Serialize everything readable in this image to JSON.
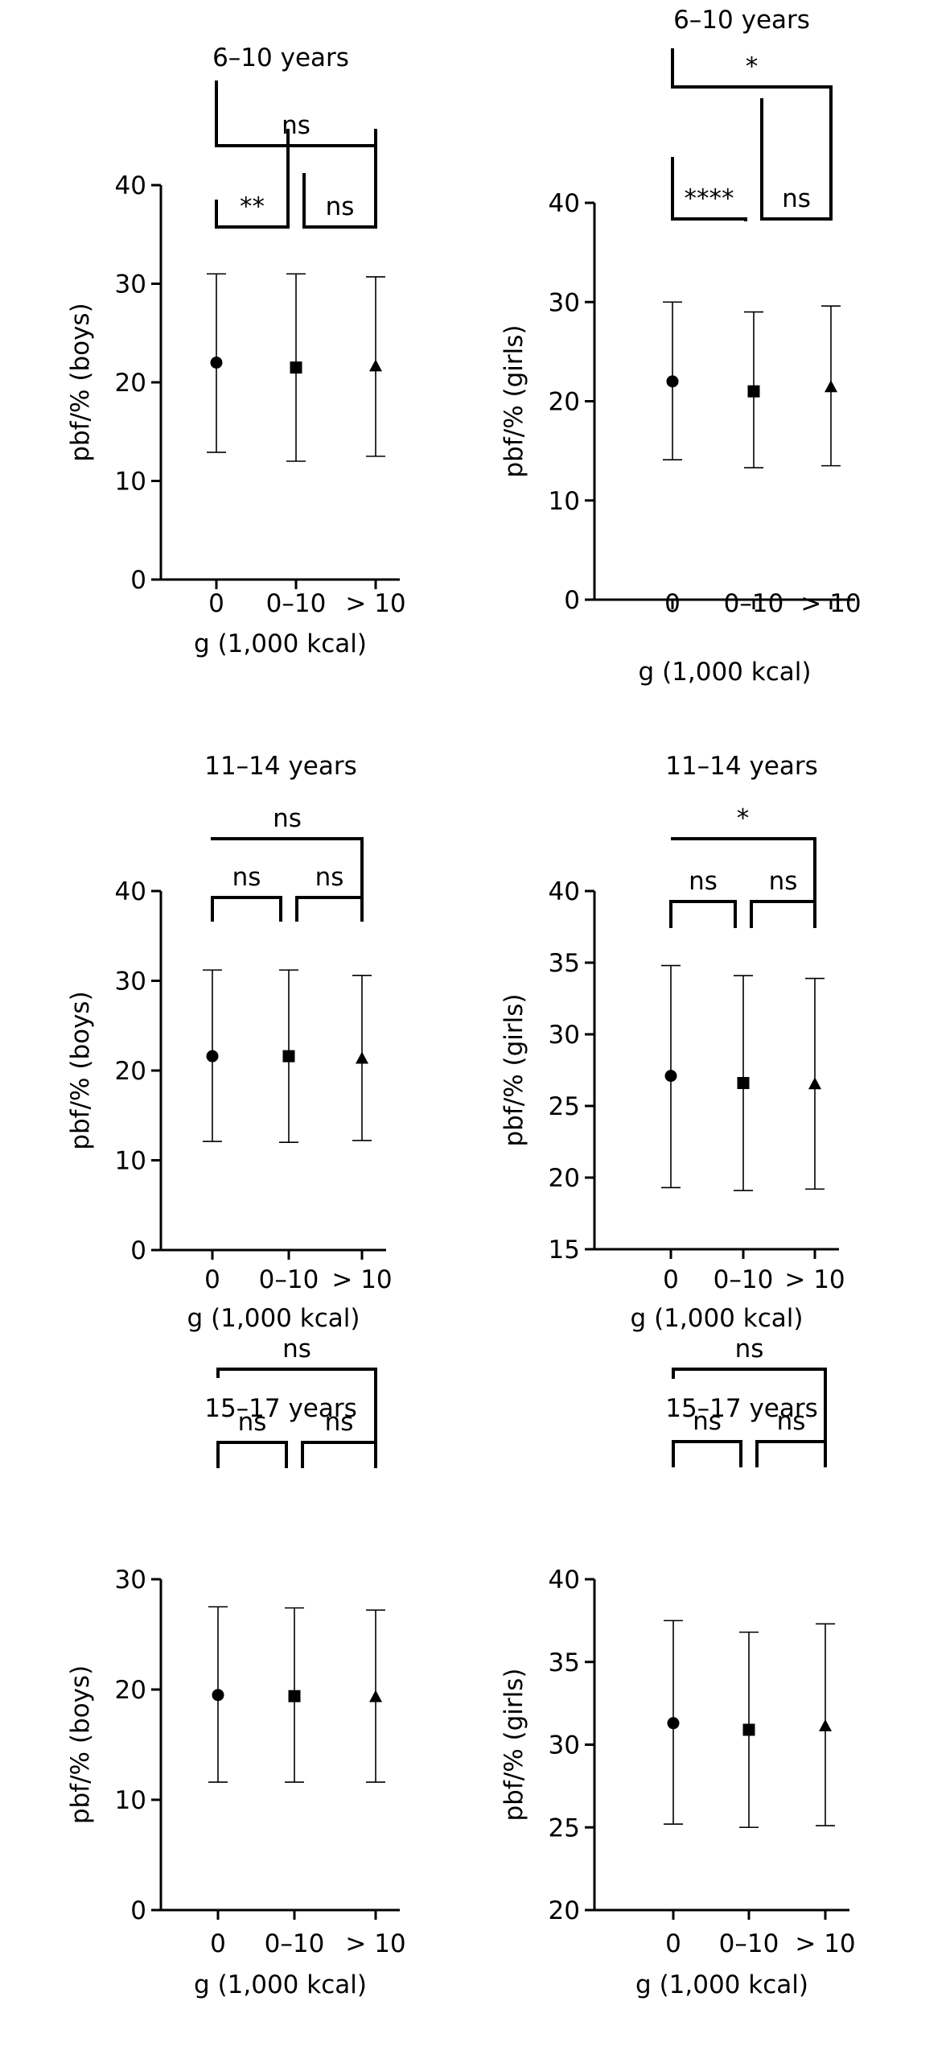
{
  "chart_data": [
    {
      "type": "scatter",
      "title": "6–10 years",
      "xlabel": "g (1,000 kcal)",
      "ylabel": "pbf/% (boys)",
      "categories": [
        "0",
        "0–10",
        "> 10"
      ],
      "ylim": [
        0,
        40
      ],
      "yticks": [
        "0",
        "10",
        "20",
        "30",
        "40"
      ],
      "series": [
        {
          "marker": "circle",
          "mean": 22.0,
          "low": 12.9,
          "high": 31.0
        },
        {
          "marker": "square",
          "mean": 21.5,
          "low": 12.0,
          "high": 31.0
        },
        {
          "marker": "triangle",
          "mean": 21.6,
          "low": 12.5,
          "high": 30.7
        }
      ],
      "comparisons": [
        {
          "from": 0,
          "to": 1,
          "label": "**"
        },
        {
          "from": 1,
          "to": 2,
          "label": "ns"
        },
        {
          "from": 0,
          "to": 2,
          "label": "ns"
        }
      ]
    },
    {
      "type": "scatter",
      "title": "6–10 years",
      "xlabel": "g (1,000 kcal)",
      "ylabel": "pbf/% (girls)",
      "categories": [
        "0",
        "0–10",
        "> 10"
      ],
      "ylim": [
        0,
        40
      ],
      "yticks": [
        "0",
        "10",
        "20",
        "30",
        "40"
      ],
      "series": [
        {
          "marker": "circle",
          "mean": 22.0,
          "low": 14.1,
          "high": 30.0
        },
        {
          "marker": "square",
          "mean": 21.0,
          "low": 13.3,
          "high": 29.0
        },
        {
          "marker": "triangle",
          "mean": 21.4,
          "low": 13.5,
          "high": 29.6
        }
      ],
      "comparisons": [
        {
          "from": 0,
          "to": 1,
          "label": "****"
        },
        {
          "from": 1,
          "to": 2,
          "label": "ns"
        },
        {
          "from": 0,
          "to": 2,
          "label": "*"
        }
      ]
    },
    {
      "type": "scatter",
      "title": "11–14 years",
      "xlabel": "g (1,000 kcal)",
      "ylabel": "pbf/% (boys)",
      "categories": [
        "0",
        "0–10",
        "> 10"
      ],
      "ylim": [
        0,
        40
      ],
      "yticks": [
        "0",
        "10",
        "20",
        "30",
        "40"
      ],
      "series": [
        {
          "marker": "circle",
          "mean": 21.6,
          "low": 12.1,
          "high": 31.2
        },
        {
          "marker": "square",
          "mean": 21.6,
          "low": 12.0,
          "high": 31.2
        },
        {
          "marker": "triangle",
          "mean": 21.3,
          "low": 12.2,
          "high": 30.6
        }
      ],
      "comparisons": [
        {
          "from": 0,
          "to": 1,
          "label": "ns"
        },
        {
          "from": 1,
          "to": 2,
          "label": "ns"
        },
        {
          "from": 0,
          "to": 2,
          "label": "ns"
        }
      ]
    },
    {
      "type": "scatter",
      "title": "11–14 years",
      "xlabel": "g (1,000 kcal)",
      "ylabel": "pbf/% (girls)",
      "categories": [
        "0",
        "0–10",
        "> 10"
      ],
      "ylim": [
        15,
        40
      ],
      "yticks": [
        "15",
        "20",
        "25",
        "30",
        "35",
        "40"
      ],
      "series": [
        {
          "marker": "circle",
          "mean": 27.1,
          "low": 19.3,
          "high": 34.8
        },
        {
          "marker": "square",
          "mean": 26.6,
          "low": 19.1,
          "high": 34.1
        },
        {
          "marker": "triangle",
          "mean": 26.5,
          "low": 19.2,
          "high": 33.9
        }
      ],
      "comparisons": [
        {
          "from": 0,
          "to": 1,
          "label": "ns"
        },
        {
          "from": 1,
          "to": 2,
          "label": "ns"
        },
        {
          "from": 0,
          "to": 2,
          "label": "*"
        }
      ]
    },
    {
      "type": "scatter",
      "title": "15–17 years",
      "xlabel": "g (1,000 kcal)",
      "ylabel": "pbf/% (boys)",
      "categories": [
        "0",
        "0–10",
        "> 10"
      ],
      "ylim": [
        0,
        30
      ],
      "yticks": [
        "0",
        "10",
        "20",
        "30"
      ],
      "series": [
        {
          "marker": "circle",
          "mean": 19.5,
          "low": 11.6,
          "high": 27.5
        },
        {
          "marker": "square",
          "mean": 19.4,
          "low": 11.6,
          "high": 27.4
        },
        {
          "marker": "triangle",
          "mean": 19.3,
          "low": 11.6,
          "high": 27.2
        }
      ],
      "comparisons": [
        {
          "from": 0,
          "to": 1,
          "label": "ns"
        },
        {
          "from": 1,
          "to": 2,
          "label": "ns"
        },
        {
          "from": 0,
          "to": 2,
          "label": "ns"
        }
      ]
    },
    {
      "type": "scatter",
      "title": "15–17 years",
      "xlabel": "g (1,000 kcal)",
      "ylabel": "pbf/% (girls)",
      "categories": [
        "0",
        "0–10",
        "> 10"
      ],
      "ylim": [
        20,
        40
      ],
      "yticks": [
        "20",
        "25",
        "30",
        "35",
        "40"
      ],
      "series": [
        {
          "marker": "circle",
          "mean": 31.3,
          "low": 25.2,
          "high": 37.5
        },
        {
          "marker": "square",
          "mean": 30.9,
          "low": 25.0,
          "high": 36.8
        },
        {
          "marker": "triangle",
          "mean": 31.1,
          "low": 25.1,
          "high": 37.3
        }
      ],
      "comparisons": [
        {
          "from": 0,
          "to": 1,
          "label": "ns"
        },
        {
          "from": 1,
          "to": 2,
          "label": "ns"
        },
        {
          "from": 0,
          "to": 2,
          "label": "ns"
        }
      ]
    }
  ]
}
